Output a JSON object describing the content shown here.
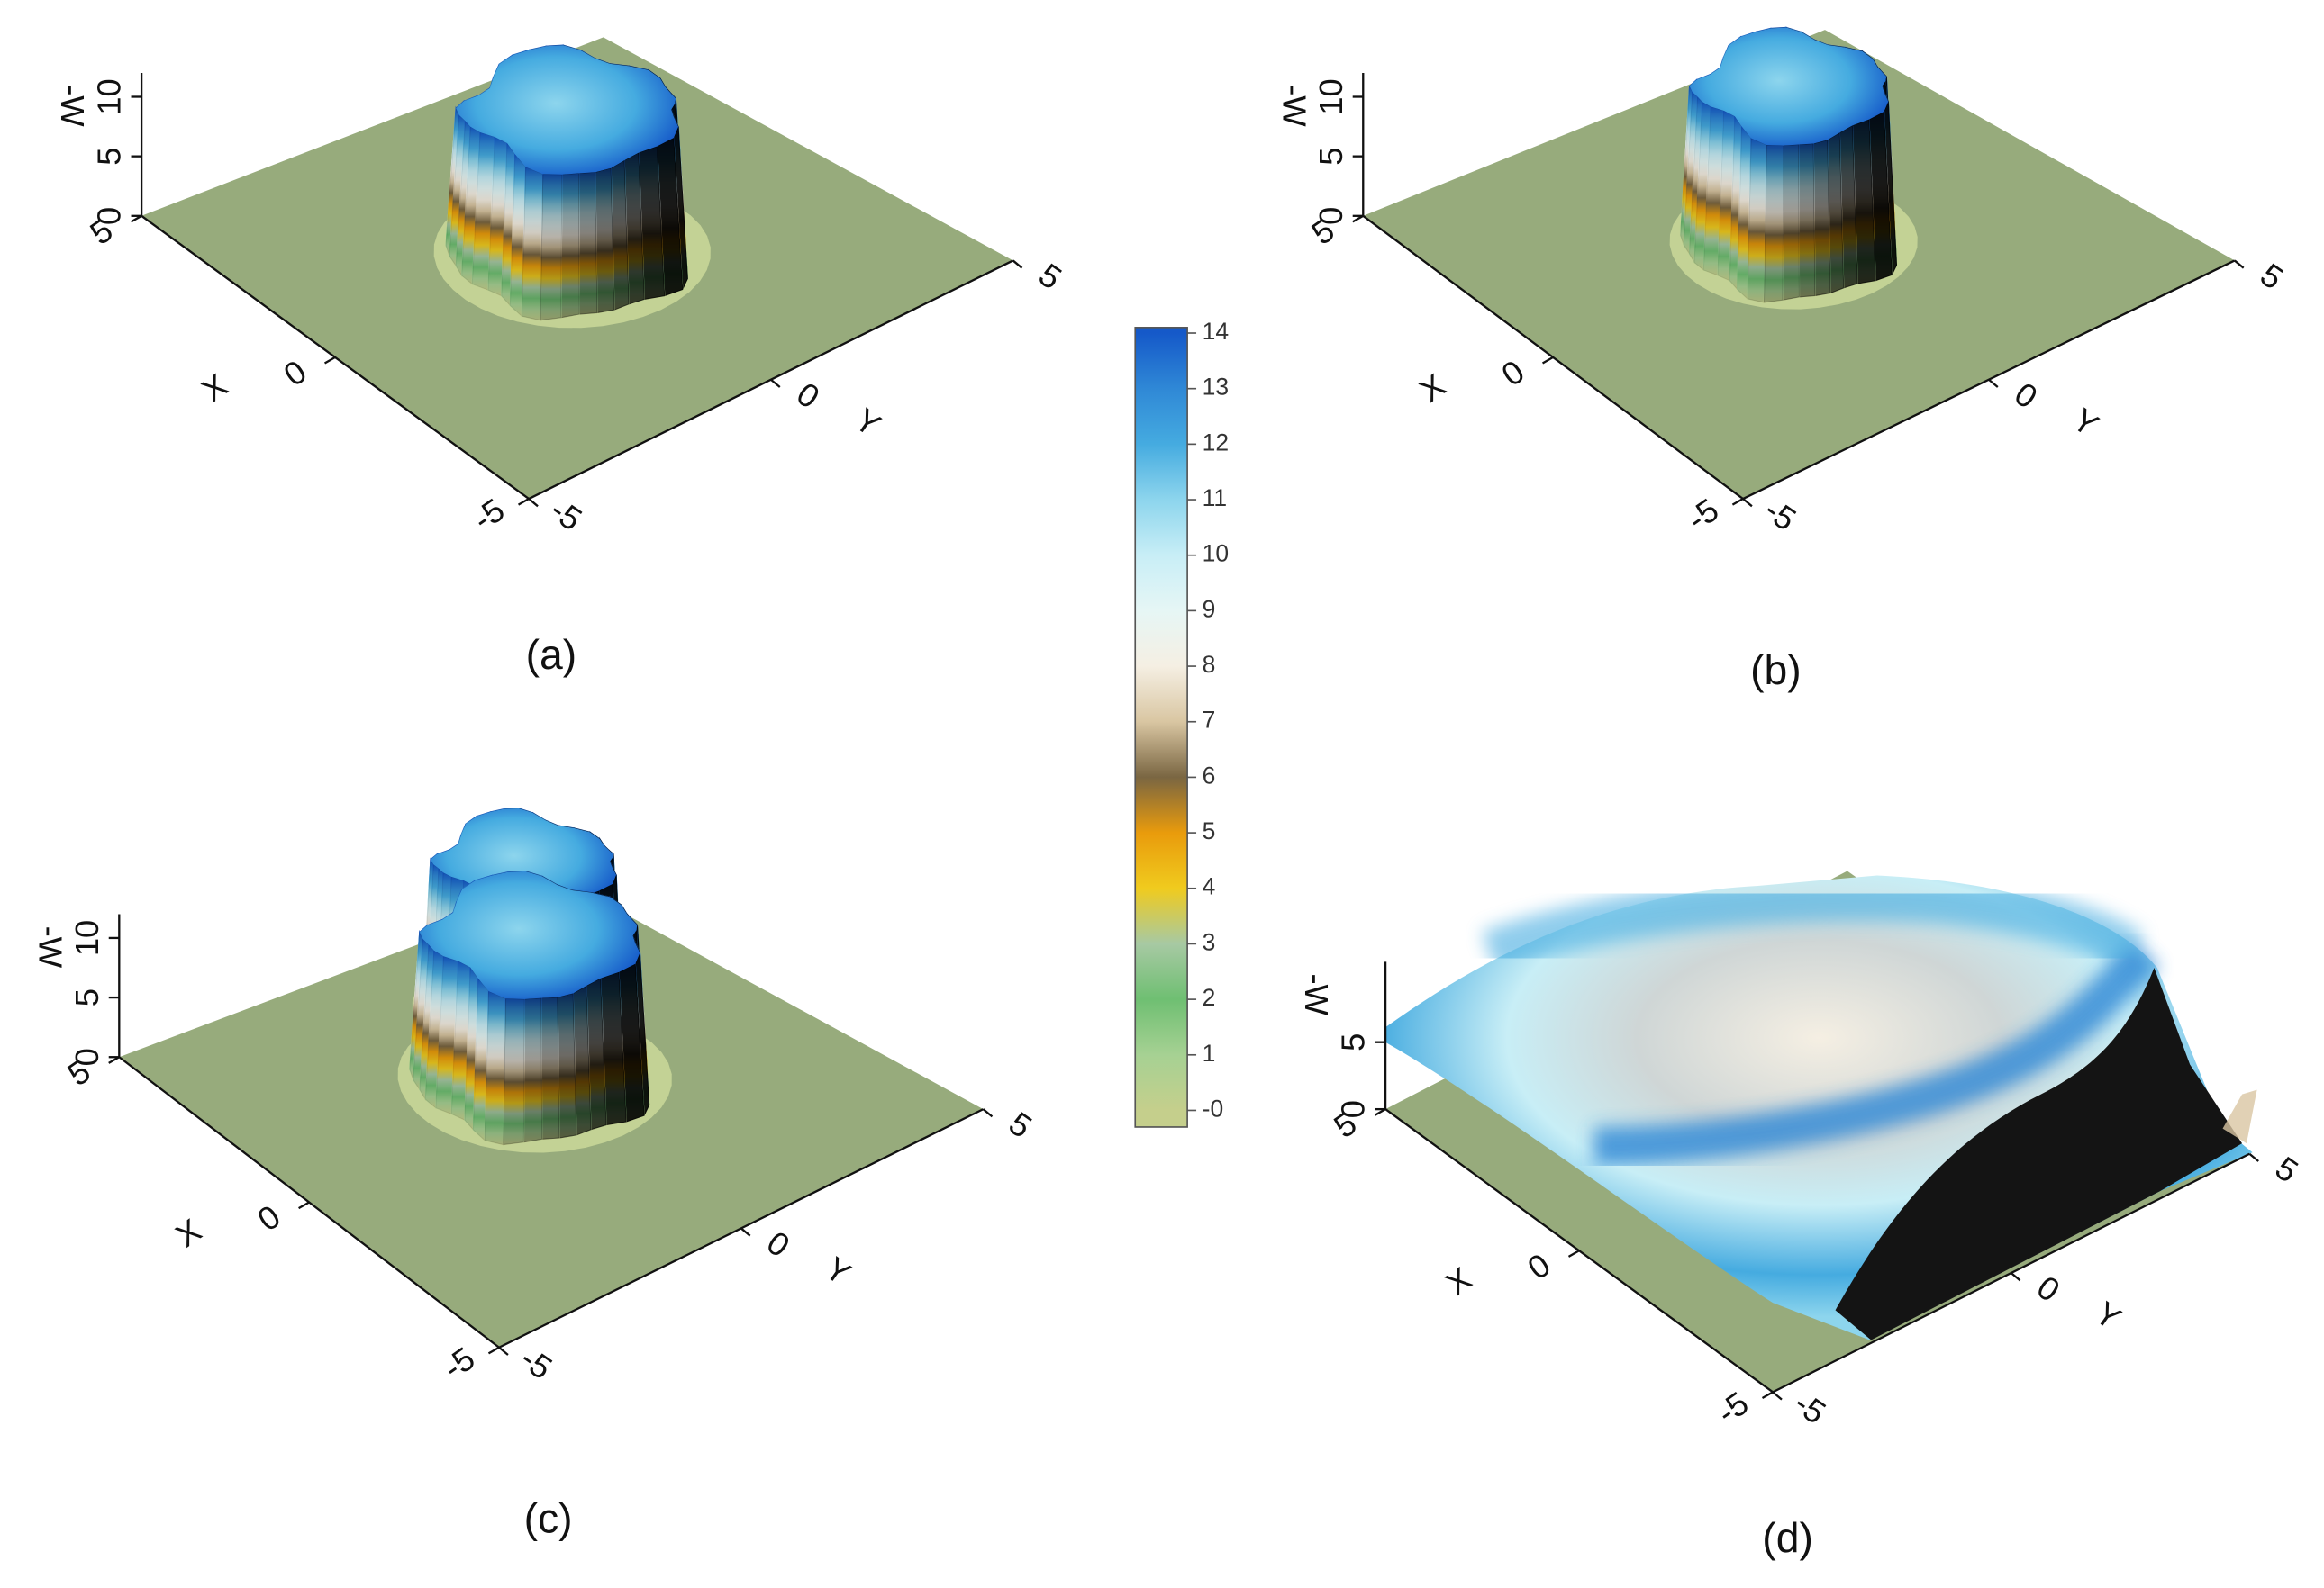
{
  "chart_data": [
    {
      "type": "surface",
      "panel_label": "(a)",
      "xlabel": "X",
      "ylabel": "Y",
      "zlabel": "-W",
      "xlim": [
        -5,
        5
      ],
      "ylim": [
        -5,
        5
      ],
      "zlim": [
        0,
        12
      ],
      "xticks": [
        -5,
        0,
        5
      ],
      "yticks": [
        -5,
        0,
        5
      ],
      "zticks": [
        0,
        5,
        10
      ]
    },
    {
      "type": "surface",
      "panel_label": "(b)",
      "xlabel": "X",
      "ylabel": "Y",
      "zlabel": "-W",
      "xlim": [
        -5,
        5
      ],
      "ylim": [
        -5,
        5
      ],
      "zlim": [
        0,
        12
      ],
      "xticks": [
        -5,
        0,
        5
      ],
      "yticks": [
        -5,
        0,
        5
      ],
      "zticks": [
        0,
        5,
        10
      ]
    },
    {
      "type": "surface",
      "panel_label": "(c)",
      "xlabel": "X",
      "ylabel": "Y",
      "zlabel": "-W",
      "xlim": [
        -5,
        5
      ],
      "ylim": [
        -5,
        5
      ],
      "zlim": [
        0,
        12
      ],
      "xticks": [
        -5,
        0,
        5
      ],
      "yticks": [
        -5,
        0,
        5
      ],
      "zticks": [
        0,
        5,
        10
      ]
    },
    {
      "type": "surface",
      "panel_label": "(d)",
      "xlabel": "X",
      "ylabel": "Y",
      "zlabel": "-W",
      "xlim": [
        -5,
        5
      ],
      "ylim": [
        -5,
        5
      ],
      "zlim": [
        0,
        11
      ],
      "xticks": [
        -5,
        0,
        5
      ],
      "yticks": [
        -5,
        0,
        5
      ],
      "zticks": [
        0,
        5
      ]
    }
  ],
  "colorbar": {
    "zlim": [
      -0.3,
      14.1
    ],
    "zticks": [
      {
        "value": 0,
        "label": "-0"
      },
      1,
      2,
      3,
      4,
      5,
      6,
      7,
      8,
      9,
      10,
      11,
      12,
      13,
      14
    ],
    "colors": [
      "#c5cf8c",
      "#a6d193",
      "#6fbf72",
      "#a7c9a3",
      "#f0cb1e",
      "#e99b0c",
      "#7a6642",
      "#d9c6a2",
      "#f5efe3",
      "#e6f6f5",
      "#c8eef6",
      "#8dd5ed",
      "#45abe0",
      "#2f88d6",
      "#1559c9"
    ]
  }
}
